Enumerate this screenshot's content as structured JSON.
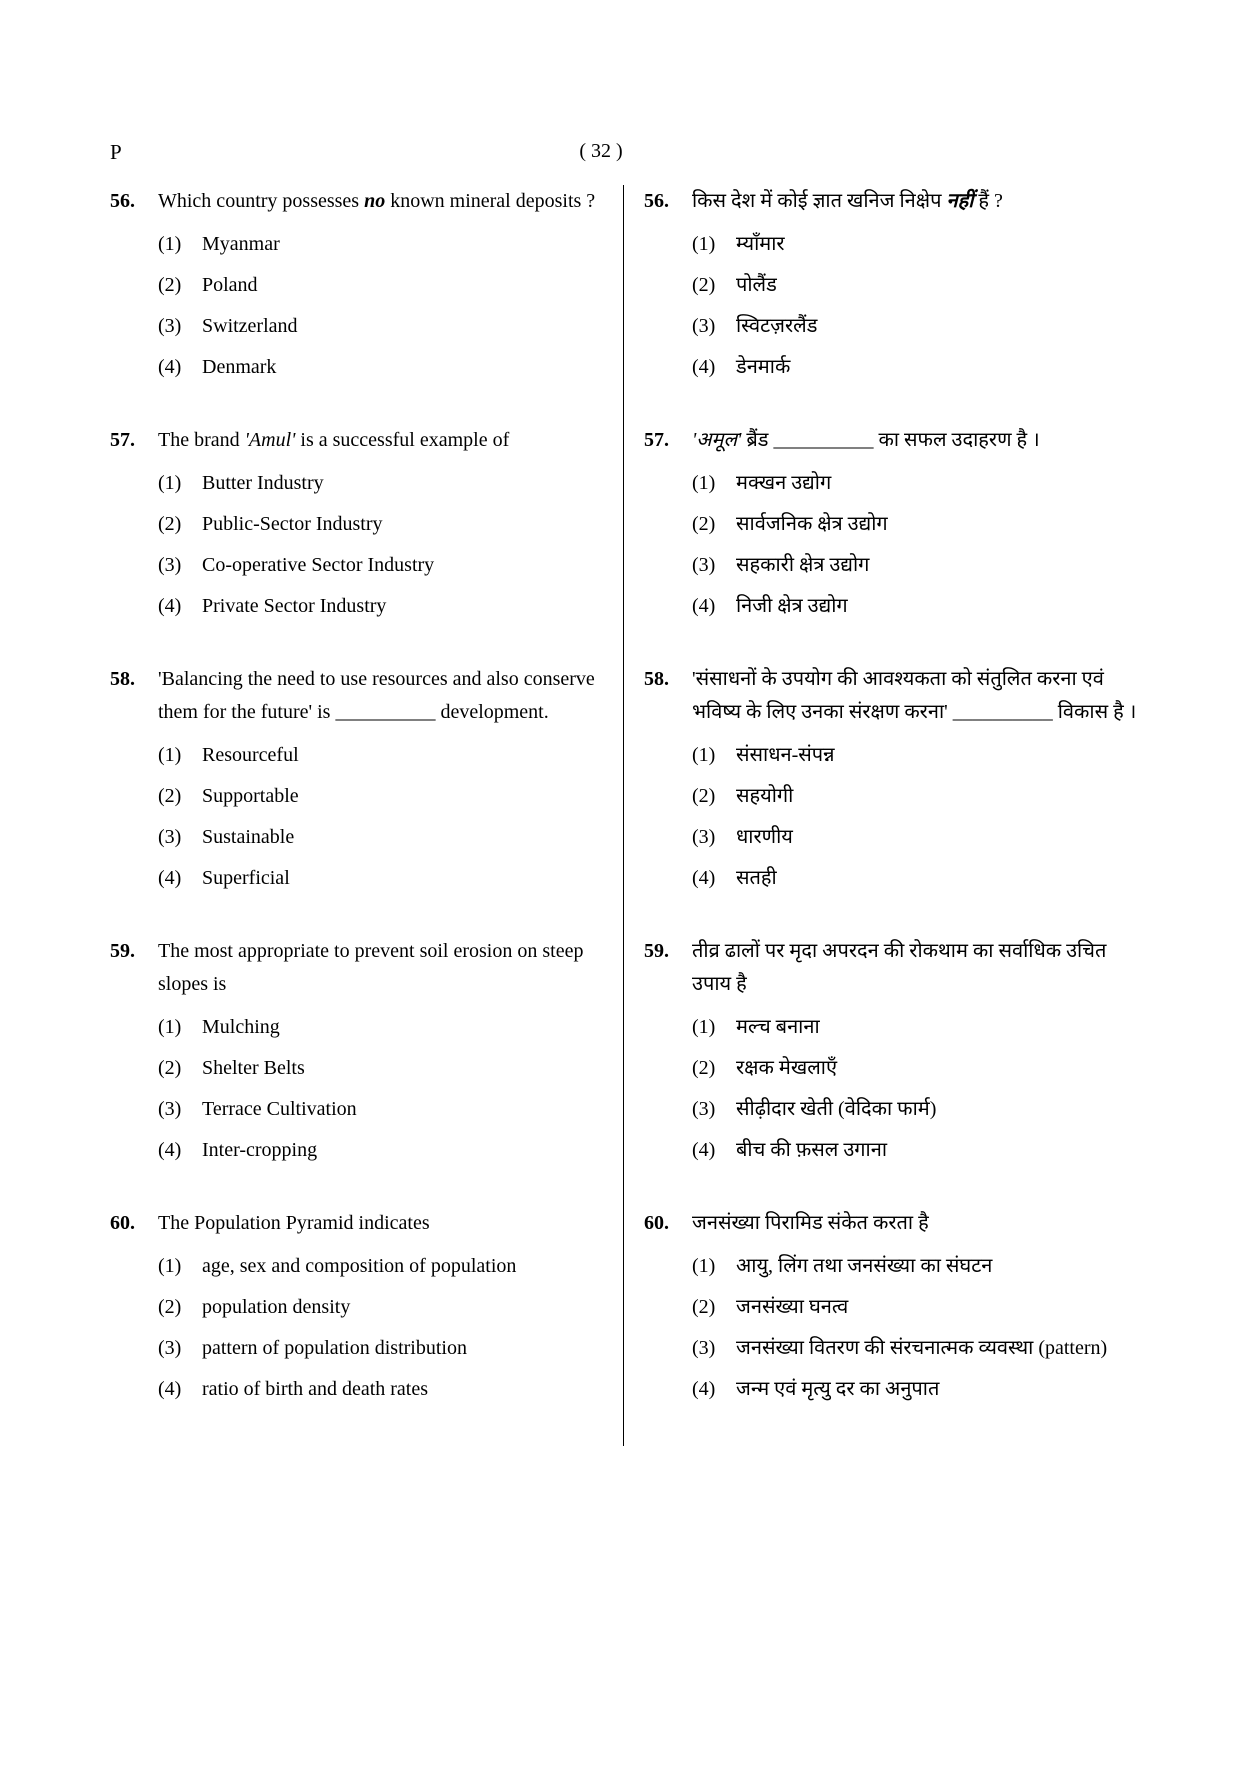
{
  "page_marker": "P",
  "page_number": "( 32 )",
  "font": {
    "body_size_pt": 20,
    "qnum_weight": "bold",
    "line_height": 1.65,
    "color": "#000000"
  },
  "questions_left": [
    {
      "num": "56.",
      "stem_parts": [
        {
          "t": "Which country possesses ",
          "cls": ""
        },
        {
          "t": "no",
          "cls": "bold-italic"
        },
        {
          "t": " known mineral deposits ?",
          "cls": ""
        }
      ],
      "options": [
        {
          "n": "(1)",
          "t": "Myanmar"
        },
        {
          "n": "(2)",
          "t": "Poland"
        },
        {
          "n": "(3)",
          "t": "Switzerland"
        },
        {
          "n": "(4)",
          "t": "Denmark"
        }
      ]
    },
    {
      "num": "57.",
      "stem_parts": [
        {
          "t": "The brand ",
          "cls": ""
        },
        {
          "t": "'Amul'",
          "cls": "italic"
        },
        {
          "t": " is a successful example of",
          "cls": ""
        }
      ],
      "options": [
        {
          "n": "(1)",
          "t": "Butter Industry"
        },
        {
          "n": "(2)",
          "t": "Public-Sector Industry"
        },
        {
          "n": "(3)",
          "t": "Co-operative Sector Industry"
        },
        {
          "n": "(4)",
          "t": "Private Sector Industry"
        }
      ]
    },
    {
      "num": "58.",
      "stem_parts": [
        {
          "t": "'Balancing the need to use resources and also conserve them for the future' is __________ development.",
          "cls": ""
        }
      ],
      "options": [
        {
          "n": "(1)",
          "t": "Resourceful"
        },
        {
          "n": "(2)",
          "t": "Supportable"
        },
        {
          "n": "(3)",
          "t": "Sustainable"
        },
        {
          "n": "(4)",
          "t": "Superficial"
        }
      ]
    },
    {
      "num": "59.",
      "stem_parts": [
        {
          "t": "The most appropriate to prevent soil erosion on steep slopes is",
          "cls": ""
        }
      ],
      "options": [
        {
          "n": "(1)",
          "t": "Mulching"
        },
        {
          "n": "(2)",
          "t": "Shelter Belts"
        },
        {
          "n": "(3)",
          "t": "Terrace Cultivation"
        },
        {
          "n": "(4)",
          "t": "Inter-cropping"
        }
      ]
    },
    {
      "num": "60.",
      "stem_parts": [
        {
          "t": "The Population Pyramid indicates",
          "cls": ""
        }
      ],
      "options": [
        {
          "n": "(1)",
          "t": "age, sex and composition of population"
        },
        {
          "n": "(2)",
          "t": "population density"
        },
        {
          "n": "(3)",
          "t": "pattern of population distribution"
        },
        {
          "n": "(4)",
          "t": "ratio of birth and death rates"
        }
      ]
    }
  ],
  "questions_right": [
    {
      "num": "56.",
      "stem_parts": [
        {
          "t": "किस देश में कोई ज्ञात खनिज निक्षेप ",
          "cls": ""
        },
        {
          "t": "नहीं",
          "cls": "bold-italic"
        },
        {
          "t": " हैं ?",
          "cls": ""
        }
      ],
      "options": [
        {
          "n": "(1)",
          "t": "म्याँमार"
        },
        {
          "n": "(2)",
          "t": "पोलैंड"
        },
        {
          "n": "(3)",
          "t": "स्विटज़रलैंड"
        },
        {
          "n": "(4)",
          "t": "डेनमार्क"
        }
      ]
    },
    {
      "num": "57.",
      "stem_parts": [
        {
          "t": "'अमूल'",
          "cls": "italic"
        },
        {
          "t": " ब्रैंड __________ का सफल उदाहरण है ।",
          "cls": ""
        }
      ],
      "options": [
        {
          "n": "(1)",
          "t": "मक्खन उद्योग"
        },
        {
          "n": "(2)",
          "t": "सार्वजनिक क्षेत्र उद्योग"
        },
        {
          "n": "(3)",
          "t": "सहकारी क्षेत्र उद्योग"
        },
        {
          "n": "(4)",
          "t": "निजी क्षेत्र उद्योग"
        }
      ]
    },
    {
      "num": "58.",
      "stem_parts": [
        {
          "t": "'संसाधनों के उपयोग की आवश्यकता को संतुलित करना एवं भविष्य के लिए उनका संरक्षण करना' __________ विकास है ।",
          "cls": ""
        }
      ],
      "options": [
        {
          "n": "(1)",
          "t": "संसाधन-संपन्न"
        },
        {
          "n": "(2)",
          "t": "सहयोगी"
        },
        {
          "n": "(3)",
          "t": "धारणीय"
        },
        {
          "n": "(4)",
          "t": "सतही"
        }
      ]
    },
    {
      "num": "59.",
      "stem_parts": [
        {
          "t": "तीव्र ढालों पर मृदा अपरदन की रोकथाम का सर्वाधिक उचित उपाय है",
          "cls": ""
        }
      ],
      "options": [
        {
          "n": "(1)",
          "t": "मल्च बनाना"
        },
        {
          "n": "(2)",
          "t": "रक्षक मेखलाएँ"
        },
        {
          "n": "(3)",
          "t": "सीढ़ीदार खेती (वेदिका फार्म)"
        },
        {
          "n": "(4)",
          "t": "बीच की फ़सल उगाना"
        }
      ]
    },
    {
      "num": "60.",
      "stem_parts": [
        {
          "t": "जनसंख्या पिरामिड संकेत करता है",
          "cls": ""
        }
      ],
      "options": [
        {
          "n": "(1)",
          "t": "आयु, लिंग तथा जनसंख्या का संघटन"
        },
        {
          "n": "(2)",
          "t": "जनसंख्या घनत्व"
        },
        {
          "n": "(3)",
          "t": "जनसंख्या वितरण की संरचनात्मक व्यवस्था (pattern)"
        },
        {
          "n": "(4)",
          "t": "जन्म एवं मृत्यु दर का अनुपात"
        }
      ]
    }
  ]
}
